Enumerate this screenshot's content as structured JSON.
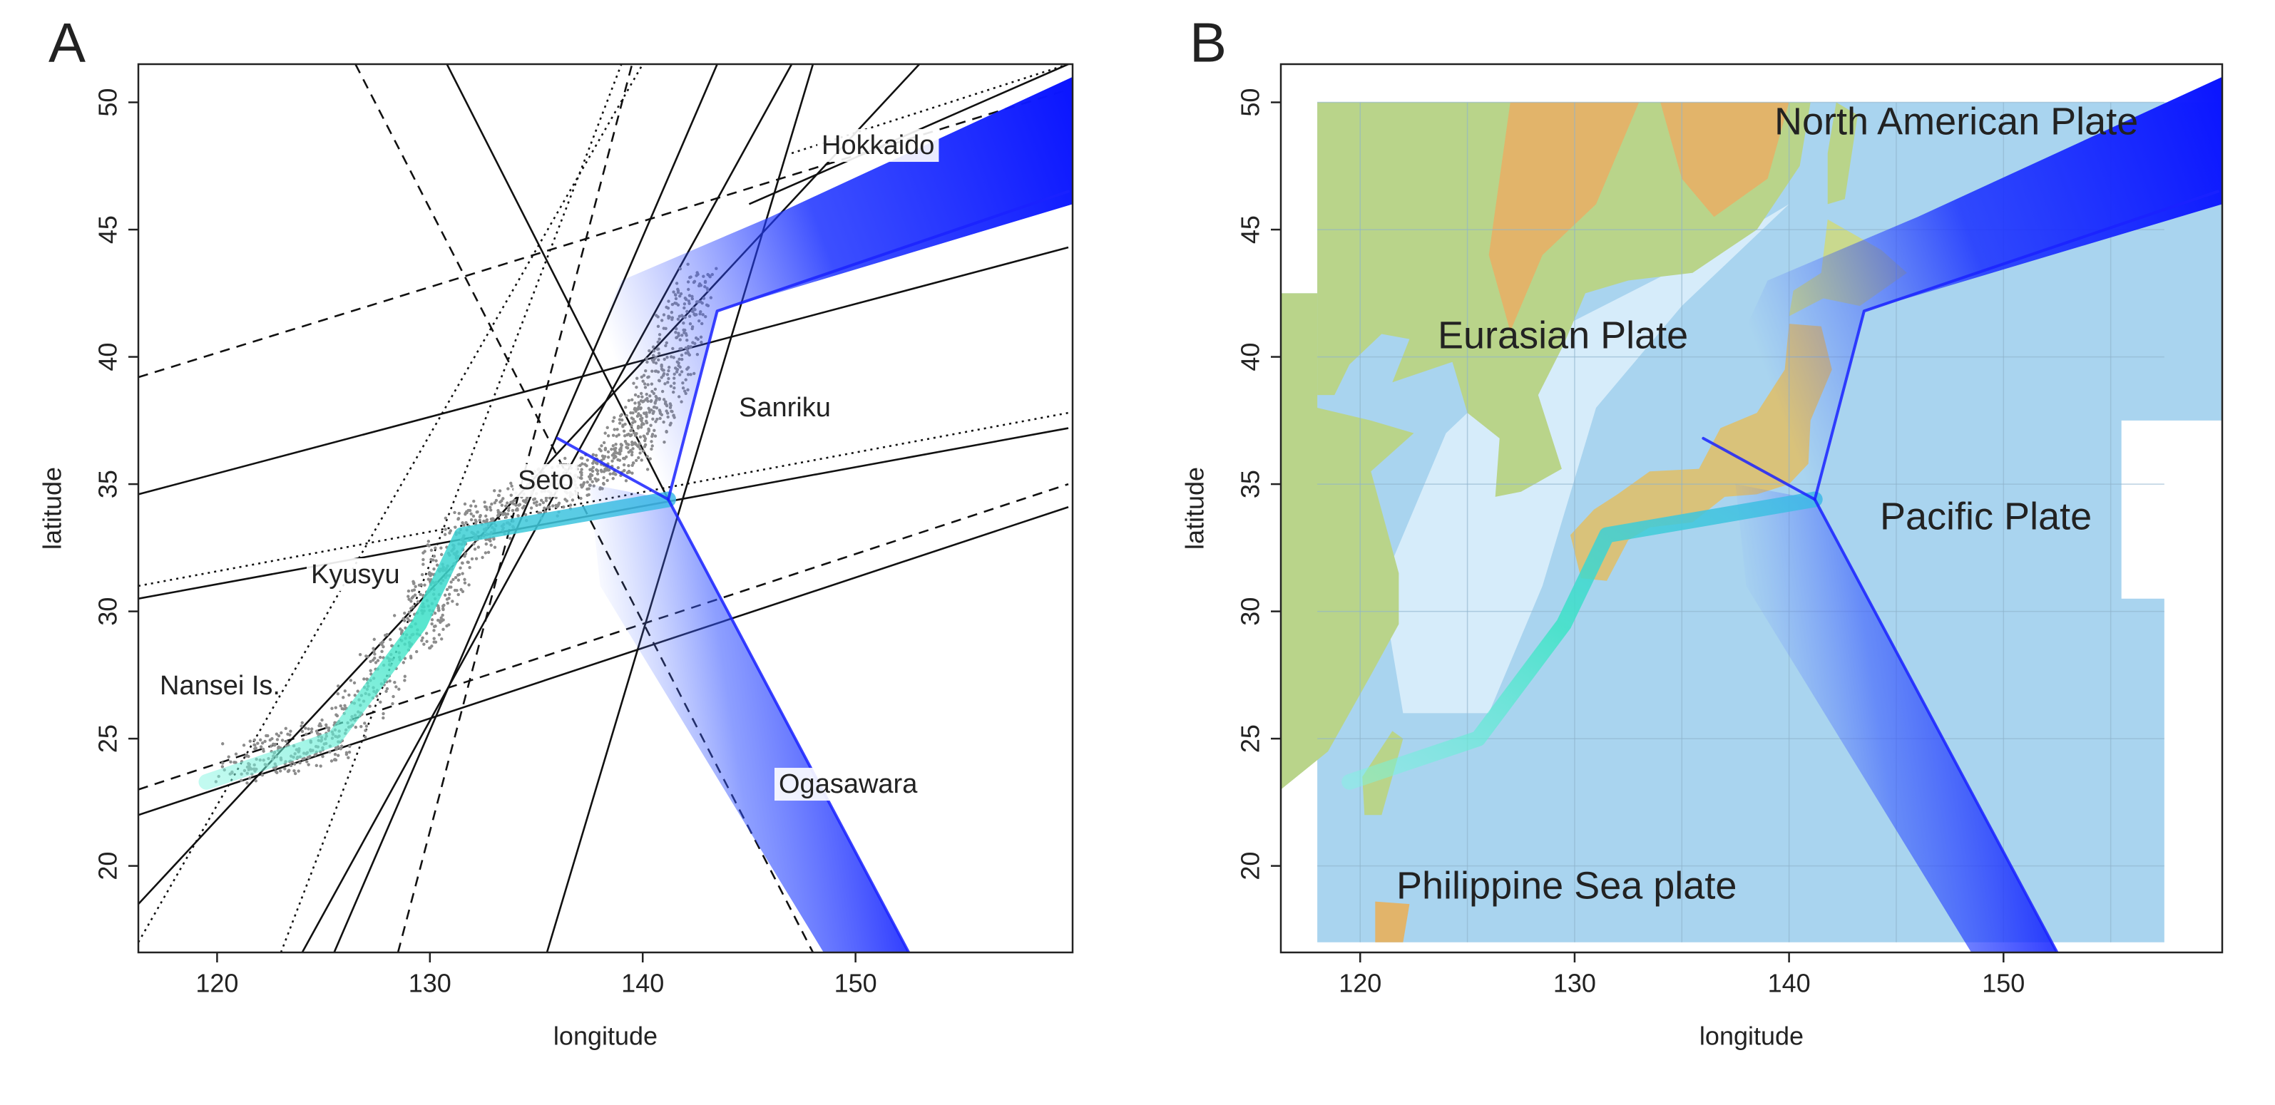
{
  "chart_data": [
    {
      "type": "map",
      "panel_label": "A",
      "x_label": "longitude",
      "y_label": "latitude",
      "xlim": [
        116.3,
        160.2
      ],
      "ylim": [
        16.6,
        51.5
      ],
      "xticks": [
        120,
        130,
        140,
        150
      ],
      "yticks": [
        20,
        25,
        30,
        35,
        40,
        45,
        50
      ],
      "annotations": [
        "Hokkaido",
        "Sanriku",
        "Seto",
        "Kyusyu",
        "Nansei Is.",
        "Ogasawara"
      ],
      "series": [
        {
          "color": "#3de3c6",
          "x": [
            119.5,
            125.5,
            129.5,
            131.5,
            141.2
          ],
          "values": [
            23.3,
            25,
            29.5,
            33,
            34.4
          ]
        },
        {
          "color": "#1a22ff",
          "x": [
            141.2,
            143.5,
            160
          ],
          "values": [
            34.4,
            41.8,
            46.5
          ]
        },
        {
          "color": "#1a22ff",
          "x": [
            141.2,
            152.5
          ],
          "values": [
            34.4,
            16.6
          ]
        },
        {
          "color": "#1a22ff",
          "x": [
            136,
            141.2
          ],
          "values": [
            36.8,
            34.4
          ]
        }
      ]
    },
    {
      "type": "map",
      "panel_label": "B",
      "x_label": "longitude",
      "y_label": "latitude",
      "xlim": [
        116.3,
        160.2
      ],
      "ylim": [
        16.6,
        51.5
      ],
      "xticks": [
        120,
        130,
        140,
        150
      ],
      "yticks": [
        20,
        25,
        30,
        35,
        40,
        45,
        50
      ],
      "annotations": [
        "North American Plate",
        "Eurasian Plate",
        "Pacific Plate",
        "Philippine Sea plate"
      ],
      "series": [
        {
          "color": "#3de3c6",
          "x": [
            119.5,
            125.5,
            129.5,
            131.5,
            141.2
          ],
          "values": [
            23.3,
            25,
            29.5,
            33,
            34.4
          ]
        },
        {
          "color": "#1a22ff",
          "x": [
            141.2,
            143.5,
            160
          ],
          "values": [
            34.4,
            41.8,
            46.5
          ]
        },
        {
          "color": "#1a22ff",
          "x": [
            141.2,
            152.5
          ],
          "values": [
            34.4,
            16.6
          ]
        },
        {
          "color": "#1a22ff",
          "x": [
            136,
            141.2
          ],
          "values": [
            36.8,
            34.4
          ]
        }
      ]
    }
  ]
}
